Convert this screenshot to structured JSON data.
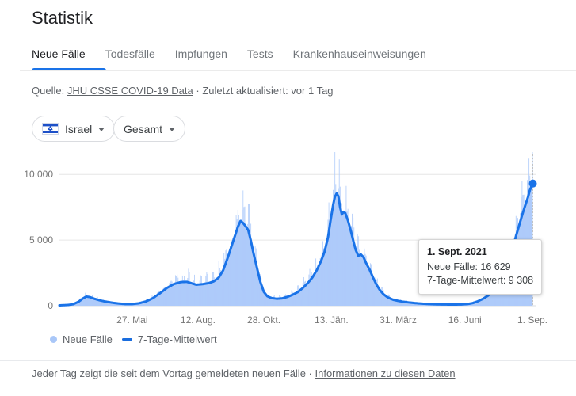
{
  "header": {
    "title": "Statistik"
  },
  "tabs": [
    {
      "label": "Neue Fälle",
      "active": true
    },
    {
      "label": "Todesfälle",
      "active": false
    },
    {
      "label": "Impfungen",
      "active": false
    },
    {
      "label": "Tests",
      "active": false
    },
    {
      "label": "Krankenhauseinweisungen",
      "active": false
    }
  ],
  "source": {
    "prefix": "Quelle: ",
    "link": "JHU CSSE COVID-19 Data",
    "sep": " · ",
    "updated": "Zuletzt aktualisiert: vor 1 Tag"
  },
  "filters": {
    "region": {
      "label": "Israel",
      "flag": "israel-flag"
    },
    "scope": {
      "label": "Gesamt"
    }
  },
  "chart_data": {
    "type": "bar",
    "title": "Neue Fälle Israel (täglich) mit 7-Tage-Mittelwert",
    "ylim": [
      0,
      11700
    ],
    "grid": true,
    "total_days": 546,
    "y_ticks": [
      {
        "value": 0,
        "label": "0"
      },
      {
        "value": 5000,
        "label": "5 000"
      },
      {
        "value": 10000,
        "label": "10 000"
      }
    ],
    "x_ticks": [
      {
        "day": 84,
        "label": "27. Mai"
      },
      {
        "day": 160,
        "label": "12. Aug."
      },
      {
        "day": 236,
        "label": "28. Okt."
      },
      {
        "day": 314,
        "label": "13. Jän."
      },
      {
        "day": 391,
        "label": "31. März"
      },
      {
        "day": 468,
        "label": "16. Juni"
      },
      {
        "day": 546,
        "label": "1. Sep."
      }
    ],
    "series": [
      {
        "name": "Neue Fälle",
        "type": "bar",
        "color": "#aecbfa"
      },
      {
        "name": "7-Tage-Mittelwert",
        "type": "line",
        "color": "#1a73e8",
        "points": [
          [
            0,
            30
          ],
          [
            10,
            60
          ],
          [
            16,
            120
          ],
          [
            22,
            300
          ],
          [
            27,
            550
          ],
          [
            31,
            700
          ],
          [
            35,
            660
          ],
          [
            40,
            540
          ],
          [
            46,
            420
          ],
          [
            52,
            330
          ],
          [
            60,
            240
          ],
          [
            68,
            170
          ],
          [
            76,
            130
          ],
          [
            84,
            130
          ],
          [
            92,
            190
          ],
          [
            100,
            330
          ],
          [
            108,
            580
          ],
          [
            116,
            950
          ],
          [
            124,
            1350
          ],
          [
            132,
            1650
          ],
          [
            140,
            1800
          ],
          [
            147,
            1820
          ],
          [
            153,
            1700
          ],
          [
            158,
            1600
          ],
          [
            165,
            1640
          ],
          [
            172,
            1720
          ],
          [
            178,
            1850
          ],
          [
            184,
            2150
          ],
          [
            189,
            2700
          ],
          [
            194,
            3600
          ],
          [
            199,
            4600
          ],
          [
            203,
            5400
          ],
          [
            206,
            6000
          ],
          [
            209,
            6450
          ],
          [
            212,
            6300
          ],
          [
            215,
            6050
          ],
          [
            218,
            5750
          ],
          [
            221,
            4950
          ],
          [
            224,
            4000
          ],
          [
            228,
            2900
          ],
          [
            232,
            1800
          ],
          [
            236,
            1050
          ],
          [
            240,
            720
          ],
          [
            245,
            580
          ],
          [
            251,
            530
          ],
          [
            257,
            560
          ],
          [
            263,
            670
          ],
          [
            269,
            830
          ],
          [
            275,
            1030
          ],
          [
            281,
            1350
          ],
          [
            287,
            1750
          ],
          [
            292,
            2150
          ],
          [
            297,
            2700
          ],
          [
            302,
            3400
          ],
          [
            306,
            4100
          ],
          [
            310,
            5200
          ],
          [
            313,
            6500
          ],
          [
            316,
            7700
          ],
          [
            318,
            8300
          ],
          [
            320,
            8550
          ],
          [
            322,
            8350
          ],
          [
            324,
            7500
          ],
          [
            326,
            6950
          ],
          [
            328,
            7150
          ],
          [
            330,
            7050
          ],
          [
            333,
            6500
          ],
          [
            336,
            5800
          ],
          [
            339,
            5000
          ],
          [
            342,
            4250
          ],
          [
            345,
            3800
          ],
          [
            348,
            3900
          ],
          [
            351,
            3700
          ],
          [
            354,
            3250
          ],
          [
            358,
            2750
          ],
          [
            362,
            2150
          ],
          [
            366,
            1600
          ],
          [
            370,
            1180
          ],
          [
            374,
            880
          ],
          [
            378,
            680
          ],
          [
            382,
            540
          ],
          [
            386,
            440
          ],
          [
            391,
            370
          ],
          [
            396,
            310
          ],
          [
            402,
            260
          ],
          [
            409,
            210
          ],
          [
            417,
            165
          ],
          [
            426,
            130
          ],
          [
            436,
            105
          ],
          [
            446,
            95
          ],
          [
            456,
            90
          ],
          [
            464,
            100
          ],
          [
            471,
            130
          ],
          [
            477,
            200
          ],
          [
            483,
            340
          ],
          [
            489,
            530
          ],
          [
            495,
            780
          ],
          [
            501,
            1150
          ],
          [
            507,
            1500
          ],
          [
            512,
            2050
          ],
          [
            517,
            2900
          ],
          [
            522,
            4100
          ],
          [
            527,
            5300
          ],
          [
            531,
            6200
          ],
          [
            535,
            7100
          ],
          [
            538,
            7700
          ],
          [
            541,
            8300
          ],
          [
            543,
            8800
          ],
          [
            545,
            9100
          ],
          [
            546,
            9308
          ]
        ]
      }
    ],
    "bar_synthesis": {
      "weekly_pattern": [
        0.95,
        1.2,
        1.35,
        1.25,
        1.1,
        0.85,
        0.45
      ],
      "jitter": 0.18,
      "last_value": 16629
    },
    "highlight": {
      "day": 546,
      "line_value": 9308,
      "bar_value": 16629
    },
    "colors": {
      "grid": "#e6e6e6",
      "baseline": "#dadce0",
      "axis_text": "#757575",
      "marker_line": "#80868b"
    },
    "legend_position": "bottom-left"
  },
  "tooltip": {
    "date": "1. Sept. 2021",
    "new_cases": "Neue Fälle: 16 629",
    "average": "7-Tage-Mittelwert: 9 308"
  },
  "legend": [
    {
      "label": "Neue Fälle"
    },
    {
      "label": "7-Tage-Mittelwert"
    }
  ],
  "footer": {
    "note": "Jeder Tag zeigt die seit dem Vortag gemeldeten neuen Fälle",
    "sep": " · ",
    "link": "Informationen zu diesen Daten"
  }
}
